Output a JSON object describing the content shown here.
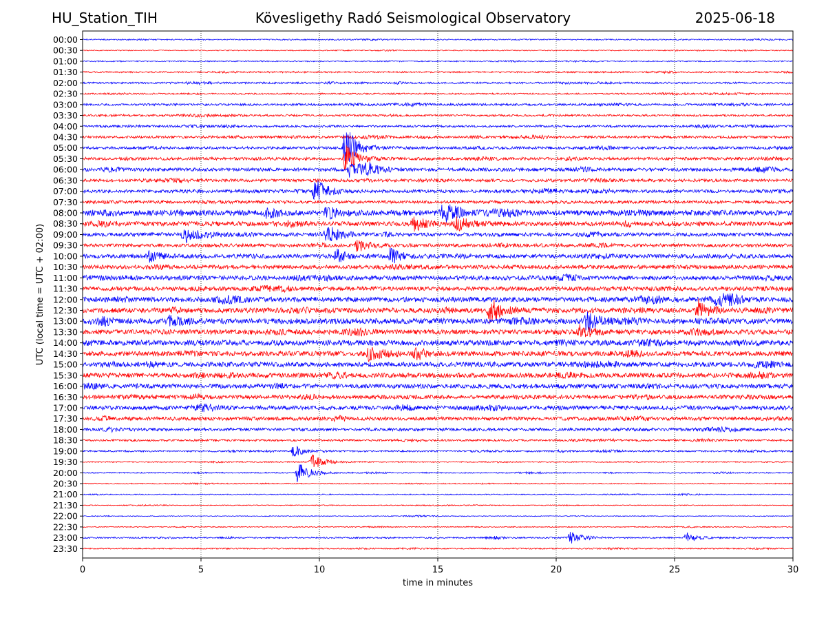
{
  "header": {
    "station": "HU_Station_TIH",
    "observatory": "Kövesligethy Radó Seismological Observatory",
    "date": "2025-06-18"
  },
  "chart_data": {
    "type": "line",
    "title": "Kövesligethy Radó Seismological Observatory",
    "xlabel": "time in minutes",
    "ylabel": "UTC (local time = UTC + 02:00)",
    "xlim": [
      0,
      30
    ],
    "x_ticks": [
      "0",
      "5",
      "10",
      "15",
      "20",
      "25",
      "30"
    ],
    "grid": "vertical dotted at 5-minute intervals",
    "row_labels": [
      "00:00",
      "00:30",
      "01:00",
      "01:30",
      "02:00",
      "02:30",
      "03:00",
      "03:30",
      "04:00",
      "04:30",
      "05:00",
      "05:30",
      "06:00",
      "06:30",
      "07:00",
      "07:30",
      "08:00",
      "08:30",
      "09:00",
      "09:30",
      "10:00",
      "10:30",
      "11:00",
      "11:30",
      "12:00",
      "12:30",
      "13:00",
      "13:30",
      "14:00",
      "14:30",
      "15:00",
      "15:30",
      "16:00",
      "16:30",
      "17:00",
      "17:30",
      "18:00",
      "18:30",
      "19:00",
      "19:30",
      "20:00",
      "20:30",
      "21:00",
      "21:30",
      "22:00",
      "22:30",
      "23:00",
      "23:30"
    ],
    "colors": {
      "full_hour": "#0000ff",
      "half_hour": "#ff0000"
    },
    "noise_level": [
      0.12,
      0.1,
      0.12,
      0.15,
      0.18,
      0.15,
      0.22,
      0.2,
      0.22,
      0.25,
      0.28,
      0.3,
      0.35,
      0.3,
      0.32,
      0.3,
      0.55,
      0.45,
      0.38,
      0.35,
      0.42,
      0.4,
      0.45,
      0.42,
      0.5,
      0.5,
      0.55,
      0.5,
      0.55,
      0.5,
      0.5,
      0.48,
      0.45,
      0.4,
      0.42,
      0.38,
      0.3,
      0.2,
      0.18,
      0.12,
      0.12,
      0.1,
      0.1,
      0.08,
      0.08,
      0.1,
      0.15,
      0.12
    ],
    "events": [
      {
        "row": 10,
        "t": 11.1,
        "amp": 3.6
      },
      {
        "row": 11,
        "t": 11.1,
        "amp": 2.2
      },
      {
        "row": 12,
        "t": 11.3,
        "amp": 1.5
      },
      {
        "row": 12,
        "t": 12.0,
        "amp": 1.0
      },
      {
        "row": 14,
        "t": 9.8,
        "amp": 2.2
      },
      {
        "row": 16,
        "t": 15.2,
        "amp": 1.5
      },
      {
        "row": 16,
        "t": 10.3,
        "amp": 1.1
      },
      {
        "row": 16,
        "t": 7.7,
        "amp": 0.9
      },
      {
        "row": 17,
        "t": 14.0,
        "amp": 1.3
      },
      {
        "row": 17,
        "t": 15.8,
        "amp": 1.2
      },
      {
        "row": 18,
        "t": 4.3,
        "amp": 1.3
      },
      {
        "row": 18,
        "t": 10.3,
        "amp": 1.2
      },
      {
        "row": 19,
        "t": 11.6,
        "amp": 1.1
      },
      {
        "row": 20,
        "t": 2.8,
        "amp": 0.9
      },
      {
        "row": 20,
        "t": 13.0,
        "amp": 1.2
      },
      {
        "row": 20,
        "t": 10.7,
        "amp": 1.0
      },
      {
        "row": 24,
        "t": 26.8,
        "amp": 0.8
      },
      {
        "row": 25,
        "t": 17.2,
        "amp": 1.9
      },
      {
        "row": 25,
        "t": 26.0,
        "amp": 1.6
      },
      {
        "row": 26,
        "t": 21.3,
        "amp": 1.7
      },
      {
        "row": 26,
        "t": 3.7,
        "amp": 0.9
      },
      {
        "row": 27,
        "t": 21.0,
        "amp": 1.1
      },
      {
        "row": 29,
        "t": 12.1,
        "amp": 1.3
      },
      {
        "row": 38,
        "t": 8.9,
        "amp": 0.9
      },
      {
        "row": 39,
        "t": 9.7,
        "amp": 1.2
      },
      {
        "row": 40,
        "t": 9.1,
        "amp": 1.9
      },
      {
        "row": 46,
        "t": 20.6,
        "amp": 1.2
      },
      {
        "row": 46,
        "t": 25.5,
        "amp": 0.8
      }
    ]
  }
}
